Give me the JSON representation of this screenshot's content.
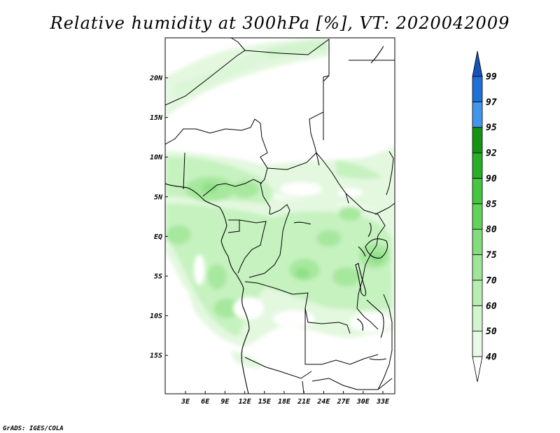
{
  "map": {
    "title": "Relative humidity at 300hPa [%], VT: 2020042009",
    "lat_labels": [
      "20N",
      "15N",
      "10N",
      "5N",
      "EQ",
      "5S",
      "10S",
      "15S"
    ],
    "lon_labels": [
      "3E",
      "6E",
      "9E",
      "12E",
      "15E",
      "18E",
      "21E",
      "24E",
      "27E",
      "30E",
      "33E"
    ],
    "region": "Central Africa",
    "field": "Relative humidity at 300hPa"
  },
  "colorbar": {
    "levels": [
      "40",
      "50",
      "60",
      "70",
      "75",
      "80",
      "85",
      "90",
      "92",
      "95",
      "97",
      "99"
    ],
    "colors": [
      "#ffffff",
      "#e8fae6",
      "#d2f5cd",
      "#b9eeb3",
      "#9fe698",
      "#84dd7c",
      "#63d35c",
      "#45c640",
      "#2aad28",
      "#139513",
      "#4495ec",
      "#1f70d6",
      "#1553b8"
    ]
  },
  "credit": "GrADS: IGES/COLA"
}
